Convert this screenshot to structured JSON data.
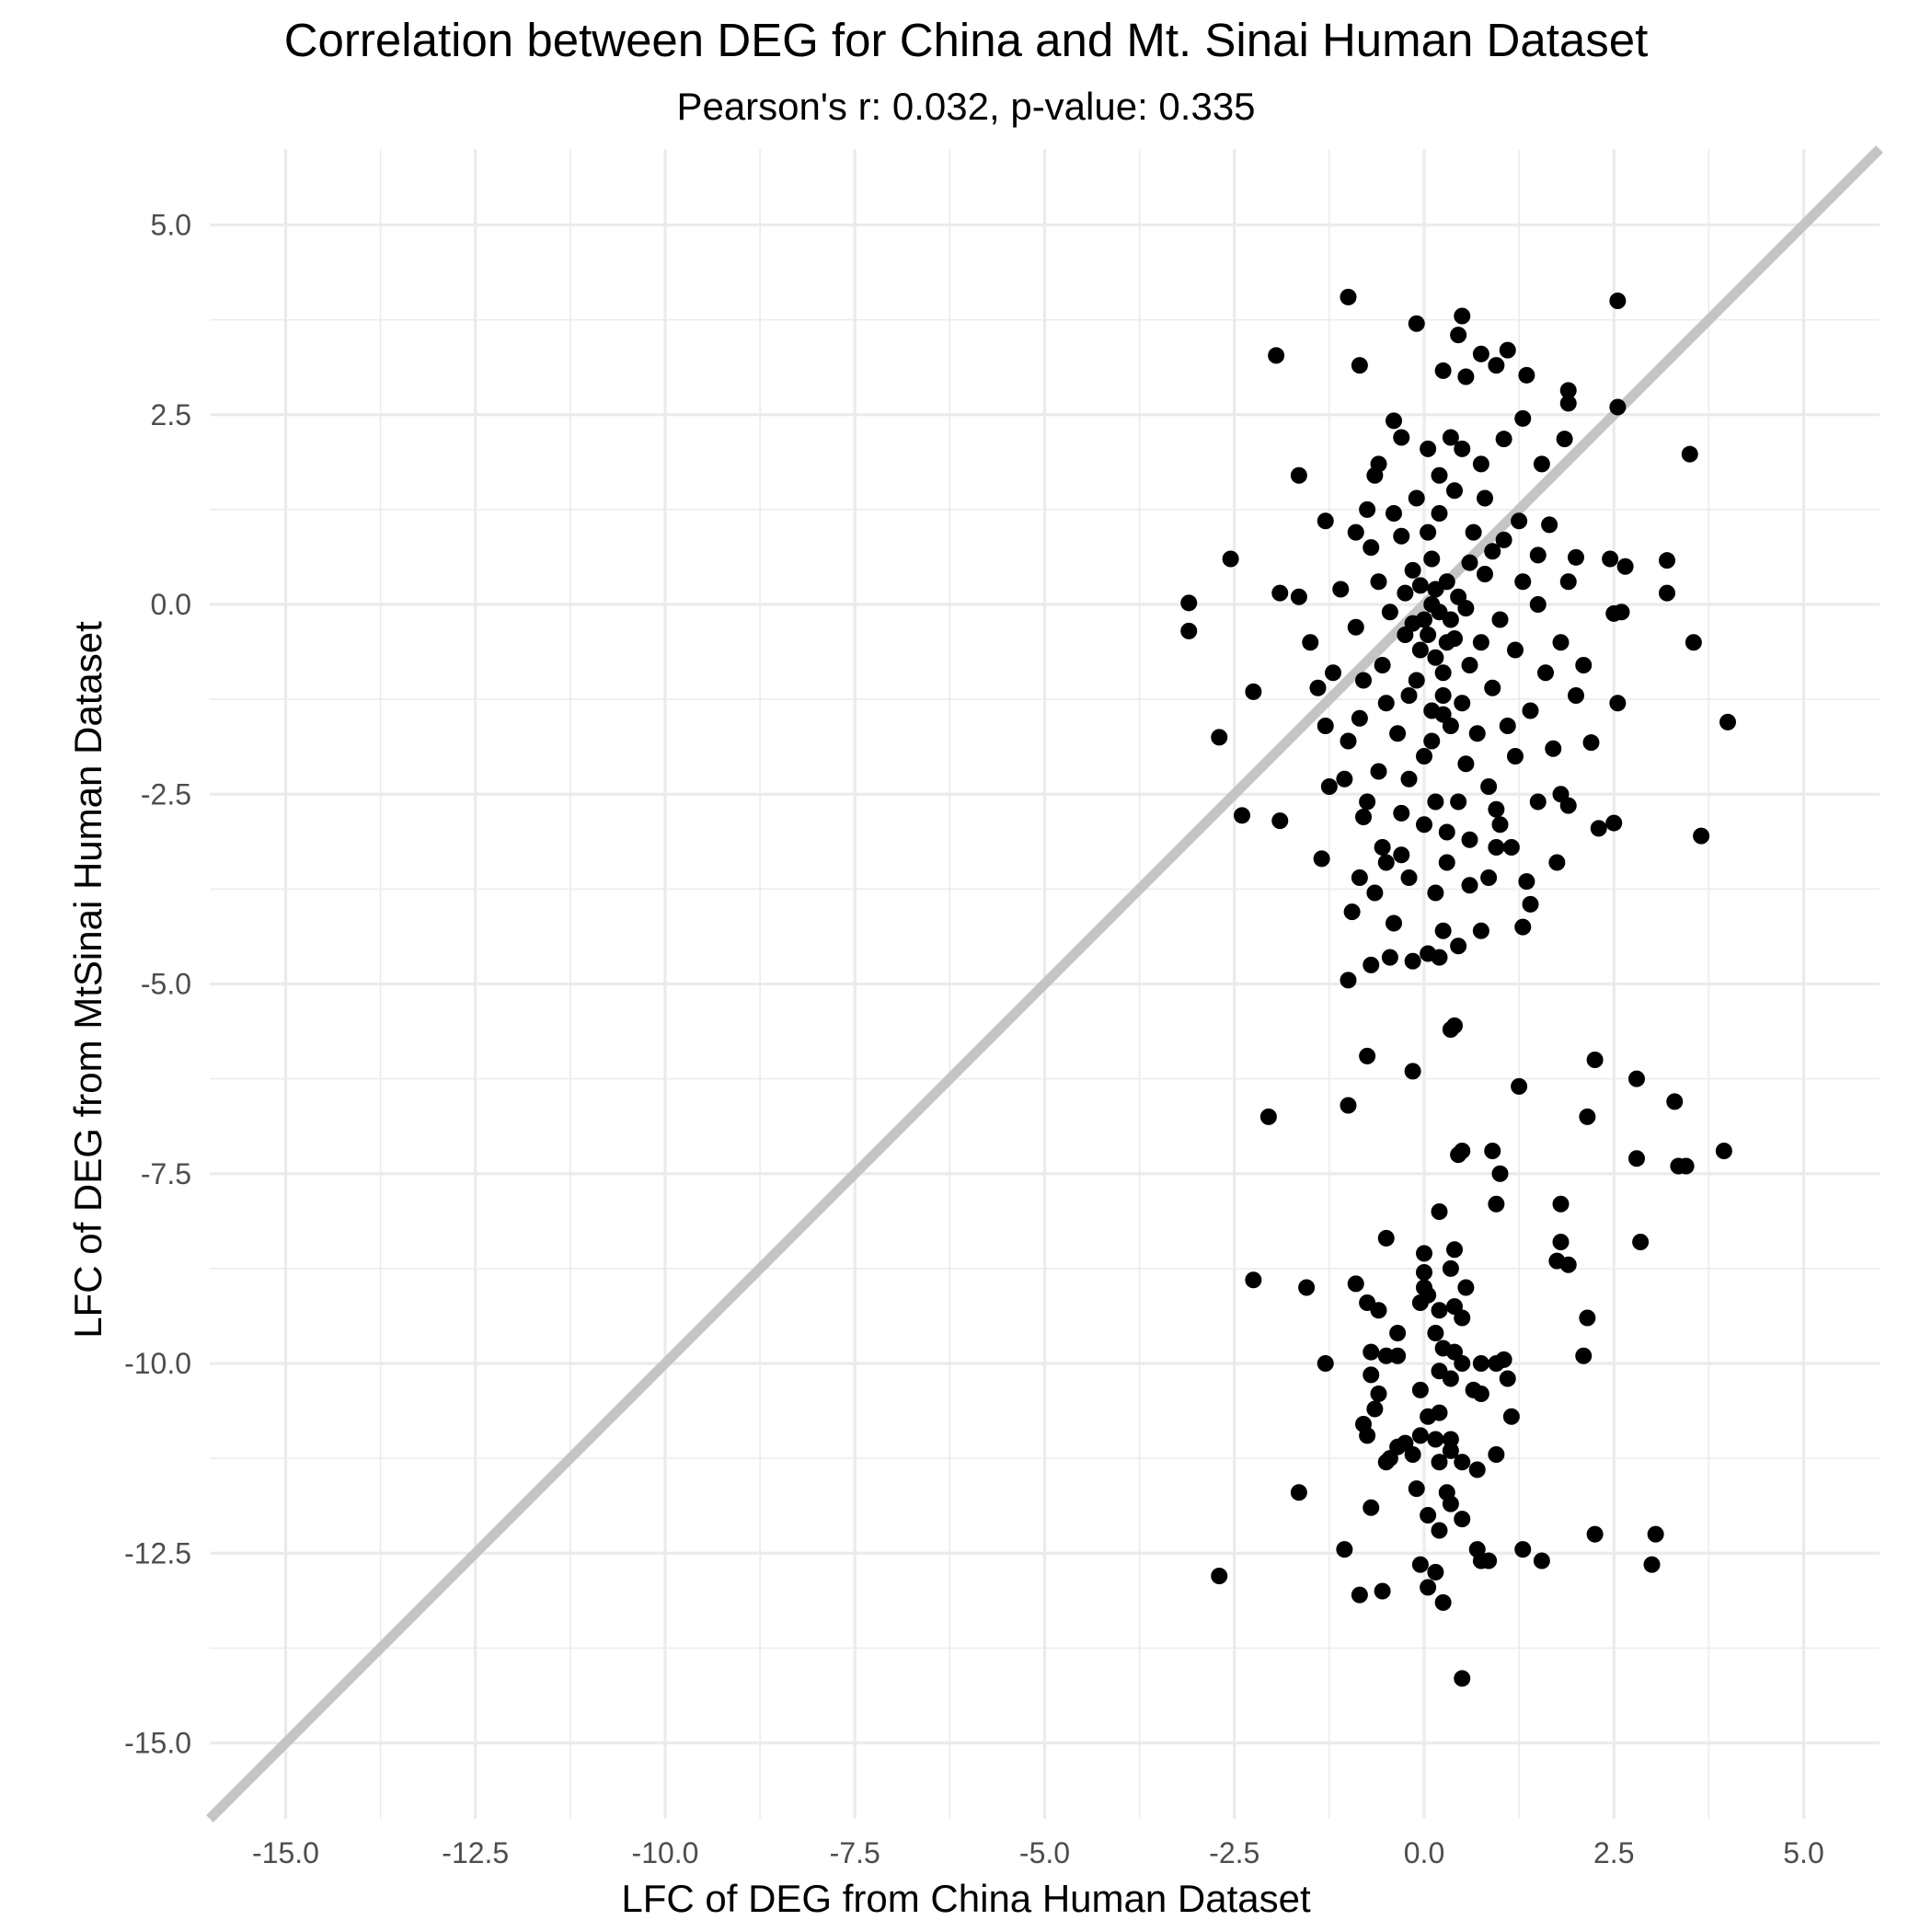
{
  "chart_data": {
    "type": "scatter",
    "title": "Correlation between DEG for China and Mt. Sinai Human Dataset",
    "subtitle": "Pearson's r: 0.032, p-value: 0.335",
    "xlabel": "LFC of DEG from China Human Dataset",
    "ylabel": "LFC of DEG from MtSinai Human Dataset",
    "xlim": [
      -16,
      6
    ],
    "ylim": [
      -16,
      6
    ],
    "xticks": [
      -15.0,
      -12.5,
      -10.0,
      -7.5,
      -5.0,
      -2.5,
      0.0,
      2.5,
      5.0
    ],
    "xtick_labels": [
      "-15.0",
      "-12.5",
      "-10.0",
      "-7.5",
      "-5.0",
      "-2.5",
      "0.0",
      "2.5",
      "5.0"
    ],
    "yticks": [
      5.0,
      2.5,
      0.0,
      -2.5,
      -5.0,
      -7.5,
      -10.0,
      -12.5,
      -15.0
    ],
    "ytick_labels": [
      "5.0",
      "2.5",
      "0.0",
      "-2.5",
      "-5.0",
      "-7.5",
      "-10.0",
      "-12.5",
      "-15.0"
    ],
    "grid": true,
    "reference_line": {
      "slope": 1,
      "intercept": 0,
      "color": "#c4c4c4"
    },
    "point_color": "#000000",
    "grid_color": "#ebebeb",
    "tick_label_color": "#4d4d4d",
    "series": [
      {
        "points": [
          [
            -1.0,
            4.05
          ],
          [
            -0.1,
            3.7
          ],
          [
            0.5,
            3.8
          ],
          [
            2.55,
            4.0
          ],
          [
            -1.95,
            3.28
          ],
          [
            -0.85,
            3.15
          ],
          [
            0.45,
            3.55
          ],
          [
            0.95,
            3.15
          ],
          [
            1.1,
            3.35
          ],
          [
            0.25,
            3.08
          ],
          [
            0.75,
            3.3
          ],
          [
            0.55,
            3.0
          ],
          [
            1.35,
            3.02
          ],
          [
            1.9,
            2.82
          ],
          [
            1.9,
            2.65
          ],
          [
            2.55,
            2.6
          ],
          [
            1.3,
            2.45
          ],
          [
            -0.4,
            2.42
          ],
          [
            -0.3,
            2.2
          ],
          [
            1.05,
            2.18
          ],
          [
            1.85,
            2.18
          ],
          [
            3.5,
            1.98
          ],
          [
            -1.65,
            1.7
          ],
          [
            -0.6,
            1.85
          ],
          [
            1.55,
            1.85
          ],
          [
            0.75,
            1.85
          ],
          [
            0.05,
            2.05
          ],
          [
            0.5,
            2.05
          ],
          [
            -1.3,
            1.1
          ],
          [
            -0.9,
            0.95
          ],
          [
            -0.75,
            1.25
          ],
          [
            1.05,
            0.85
          ],
          [
            1.65,
            1.05
          ],
          [
            2.0,
            0.62
          ],
          [
            2.45,
            0.6
          ],
          [
            2.65,
            0.5
          ],
          [
            3.2,
            0.58
          ],
          [
            3.2,
            0.15
          ],
          [
            2.5,
            -0.12
          ],
          [
            2.6,
            -0.1
          ],
          [
            3.55,
            -0.5
          ],
          [
            4.0,
            -1.55
          ],
          [
            3.65,
            -3.05
          ],
          [
            2.55,
            -1.3
          ],
          [
            2.2,
            -1.82
          ],
          [
            2.5,
            -2.88
          ],
          [
            2.3,
            -2.95
          ],
          [
            -2.55,
            0.6
          ],
          [
            -3.1,
            0.02
          ],
          [
            -3.1,
            -0.35
          ],
          [
            -2.25,
            -1.15
          ],
          [
            -2.7,
            -1.75
          ],
          [
            -2.4,
            -2.78
          ],
          [
            -1.9,
            -2.85
          ],
          [
            -1.9,
            0.15
          ],
          [
            -1.65,
            0.1
          ],
          [
            -1.35,
            -3.35
          ],
          [
            -1.25,
            -2.4
          ],
          [
            -0.95,
            -4.05
          ],
          [
            -0.65,
            -3.8
          ],
          [
            -0.7,
            -4.75
          ],
          [
            -0.45,
            -4.65
          ],
          [
            -0.15,
            -4.7
          ],
          [
            0.05,
            -4.6
          ],
          [
            0.2,
            -4.65
          ],
          [
            -1.0,
            -4.95
          ],
          [
            0.45,
            -4.5
          ],
          [
            0.75,
            -4.3
          ],
          [
            1.35,
            -3.65
          ],
          [
            1.4,
            -3.95
          ],
          [
            1.3,
            -4.25
          ],
          [
            1.75,
            -3.4
          ],
          [
            -0.8,
            -2.8
          ],
          [
            -0.5,
            -3.4
          ],
          [
            -0.3,
            -3.3
          ],
          [
            0.3,
            -3.4
          ],
          [
            0.6,
            -3.1
          ],
          [
            0.95,
            -3.2
          ],
          [
            1.5,
            -2.6
          ],
          [
            1.8,
            -2.5
          ],
          [
            1.9,
            -2.65
          ],
          [
            0.0,
            -0.2
          ],
          [
            0.15,
            0.2
          ],
          [
            0.3,
            -0.5
          ],
          [
            -0.1,
            -1.0
          ],
          [
            0.25,
            -1.2
          ],
          [
            0.1,
            0.6
          ],
          [
            -0.25,
            -0.4
          ],
          [
            0.45,
            0.1
          ],
          [
            0.6,
            -0.8
          ],
          [
            -0.5,
            -1.3
          ],
          [
            0.8,
            0.4
          ],
          [
            -0.6,
            0.3
          ],
          [
            0.35,
            -1.6
          ],
          [
            0.0,
            -2.0
          ],
          [
            0.9,
            -1.1
          ],
          [
            -0.8,
            -1.0
          ],
          [
            1.0,
            -0.2
          ],
          [
            -0.3,
            0.9
          ],
          [
            0.2,
            1.2
          ],
          [
            -0.9,
            -0.3
          ],
          [
            0.7,
            -1.7
          ],
          [
            -0.2,
            -2.3
          ],
          [
            1.2,
            -0.6
          ],
          [
            -1.0,
            -1.8
          ],
          [
            0.4,
            1.5
          ],
          [
            0.55,
            -2.1
          ],
          [
            -0.4,
            1.2
          ],
          [
            1.3,
            0.3
          ],
          [
            -1.1,
            0.2
          ],
          [
            0.15,
            -2.6
          ],
          [
            -0.6,
            -2.2
          ],
          [
            0.85,
            -2.4
          ],
          [
            1.4,
            -1.4
          ],
          [
            -1.2,
            -0.9
          ],
          [
            0.05,
            0.95
          ],
          [
            -0.15,
            0.45
          ],
          [
            0.65,
            0.95
          ],
          [
            -0.7,
            0.75
          ],
          [
            1.1,
            -1.6
          ],
          [
            -0.05,
            -0.6
          ],
          [
            0.35,
            -0.2
          ],
          [
            0.25,
            -0.9
          ],
          [
            -0.35,
            -1.7
          ],
          [
            0.5,
            -1.3
          ],
          [
            -0.55,
            -0.8
          ],
          [
            0.9,
            0.7
          ],
          [
            -0.85,
            -1.5
          ],
          [
            1.6,
            -0.9
          ],
          [
            -1.3,
            -1.6
          ],
          [
            0.75,
            -0.5
          ],
          [
            0.1,
            -1.4
          ],
          [
            -0.25,
            0.15
          ],
          [
            0.6,
            0.55
          ],
          [
            -0.45,
            -0.1
          ],
          [
            1.5,
            0.0
          ],
          [
            1.8,
            -0.5
          ],
          [
            -1.4,
            -1.1
          ],
          [
            0.2,
            1.7
          ],
          [
            -0.1,
            1.4
          ],
          [
            0.95,
            -2.7
          ],
          [
            -0.75,
            -2.6
          ],
          [
            0.3,
            -3.0
          ],
          [
            0.0,
            -2.9
          ],
          [
            1.2,
            -2.0
          ],
          [
            -1.05,
            -2.3
          ],
          [
            0.45,
            -2.6
          ],
          [
            2.0,
            -1.2
          ],
          [
            1.7,
            -1.9
          ],
          [
            2.1,
            -0.8
          ],
          [
            -0.2,
            -3.6
          ],
          [
            0.15,
            -3.8
          ],
          [
            0.6,
            -3.7
          ],
          [
            -0.55,
            -3.2
          ],
          [
            1.0,
            -2.9
          ],
          [
            -1.5,
            -0.5
          ],
          [
            0.35,
            2.2
          ],
          [
            -0.65,
            1.7
          ],
          [
            0.8,
            1.4
          ],
          [
            1.25,
            1.1
          ],
          [
            1.5,
            0.65
          ],
          [
            1.9,
            0.3
          ],
          [
            -0.85,
            -3.6
          ],
          [
            -0.4,
            -4.2
          ],
          [
            0.25,
            -4.3
          ],
          [
            0.85,
            -3.6
          ],
          [
            1.15,
            -3.2
          ],
          [
            -0.3,
            -2.75
          ],
          [
            0.1,
            0.0
          ],
          [
            0.05,
            -0.4
          ],
          [
            0.2,
            -0.1
          ],
          [
            -0.05,
            0.25
          ],
          [
            0.15,
            -0.7
          ],
          [
            0.3,
            0.3
          ],
          [
            -0.15,
            -0.25
          ],
          [
            0.4,
            -0.45
          ],
          [
            0.25,
            -1.45
          ],
          [
            -0.2,
            -1.2
          ],
          [
            0.55,
            -0.05
          ],
          [
            0.1,
            -1.8
          ],
          [
            0.4,
            -5.55
          ],
          [
            0.35,
            -5.6
          ],
          [
            -0.75,
            -5.95
          ],
          [
            -0.15,
            -6.15
          ],
          [
            -1.0,
            -6.6
          ],
          [
            -2.05,
            -6.75
          ],
          [
            0.5,
            -7.2
          ],
          [
            0.45,
            -7.25
          ],
          [
            0.9,
            -7.2
          ],
          [
            1.25,
            -6.35
          ],
          [
            2.25,
            -6.0
          ],
          [
            2.8,
            -6.25
          ],
          [
            3.3,
            -6.55
          ],
          [
            2.15,
            -6.75
          ],
          [
            1.0,
            -7.5
          ],
          [
            2.8,
            -7.3
          ],
          [
            3.35,
            -7.4
          ],
          [
            3.45,
            -7.4
          ],
          [
            3.95,
            -7.2
          ],
          [
            0.2,
            -8.0
          ],
          [
            0.95,
            -7.9
          ],
          [
            1.8,
            -7.9
          ],
          [
            -0.5,
            -8.35
          ],
          [
            0.4,
            -8.5
          ],
          [
            1.8,
            -8.4
          ],
          [
            1.75,
            -8.65
          ],
          [
            1.9,
            -8.7
          ],
          [
            2.85,
            -8.4
          ],
          [
            0.0,
            -8.55
          ],
          [
            0.35,
            -8.75
          ],
          [
            0.0,
            -8.8
          ],
          [
            0.0,
            -9.0
          ],
          [
            -2.25,
            -8.9
          ],
          [
            -1.55,
            -9.0
          ],
          [
            -0.9,
            -8.95
          ],
          [
            -0.75,
            -9.2
          ],
          [
            -0.6,
            -9.3
          ],
          [
            -0.05,
            -9.2
          ],
          [
            0.2,
            -9.3
          ],
          [
            0.05,
            -9.1
          ],
          [
            0.4,
            -9.25
          ],
          [
            0.55,
            -9.0
          ],
          [
            0.5,
            -9.4
          ],
          [
            -0.35,
            -9.6
          ],
          [
            0.15,
            -9.6
          ],
          [
            -0.5,
            -9.9
          ],
          [
            -0.35,
            -9.9
          ],
          [
            -0.7,
            -9.85
          ],
          [
            0.25,
            -9.8
          ],
          [
            0.4,
            -9.85
          ],
          [
            0.5,
            -10.0
          ],
          [
            0.75,
            -10.0
          ],
          [
            0.95,
            -10.0
          ],
          [
            1.05,
            -9.95
          ],
          [
            -1.3,
            -10.0
          ],
          [
            -0.7,
            -10.15
          ],
          [
            0.2,
            -10.1
          ],
          [
            0.35,
            -10.2
          ],
          [
            1.1,
            -10.2
          ],
          [
            2.15,
            -9.4
          ],
          [
            2.1,
            -9.9
          ],
          [
            -0.6,
            -10.4
          ],
          [
            -0.05,
            -10.35
          ],
          [
            0.65,
            -10.35
          ],
          [
            0.75,
            -10.4
          ],
          [
            1.15,
            -10.7
          ],
          [
            -0.65,
            -10.6
          ],
          [
            0.05,
            -10.7
          ],
          [
            0.2,
            -10.65
          ],
          [
            -0.8,
            -10.8
          ],
          [
            -0.75,
            -10.95
          ],
          [
            -0.05,
            -10.95
          ],
          [
            0.15,
            -11.0
          ],
          [
            0.35,
            -11.0
          ],
          [
            -0.35,
            -11.1
          ],
          [
            -0.45,
            -11.25
          ],
          [
            -0.25,
            -11.05
          ],
          [
            0.2,
            -11.3
          ],
          [
            0.35,
            -11.15
          ],
          [
            0.5,
            -11.3
          ],
          [
            0.7,
            -11.4
          ],
          [
            0.95,
            -11.2
          ],
          [
            -0.5,
            -11.3
          ],
          [
            -0.15,
            -11.2
          ],
          [
            -1.65,
            -11.7
          ],
          [
            -0.7,
            -11.9
          ],
          [
            -0.1,
            -11.65
          ],
          [
            0.3,
            -11.7
          ],
          [
            0.35,
            -11.85
          ],
          [
            0.5,
            -12.05
          ],
          [
            0.05,
            -12.0
          ],
          [
            0.2,
            -12.2
          ],
          [
            -1.05,
            -12.45
          ],
          [
            -0.05,
            -12.65
          ],
          [
            0.15,
            -12.75
          ],
          [
            0.7,
            -12.45
          ],
          [
            0.75,
            -12.6
          ],
          [
            0.85,
            -12.6
          ],
          [
            1.3,
            -12.45
          ],
          [
            1.55,
            -12.6
          ],
          [
            2.25,
            -12.25
          ],
          [
            3.05,
            -12.25
          ],
          [
            3.0,
            -12.65
          ],
          [
            -2.7,
            -12.8
          ],
          [
            -0.85,
            -13.05
          ],
          [
            -0.55,
            -13.0
          ],
          [
            0.05,
            -12.95
          ],
          [
            0.25,
            -13.15
          ],
          [
            0.5,
            -14.15
          ]
        ]
      }
    ]
  }
}
